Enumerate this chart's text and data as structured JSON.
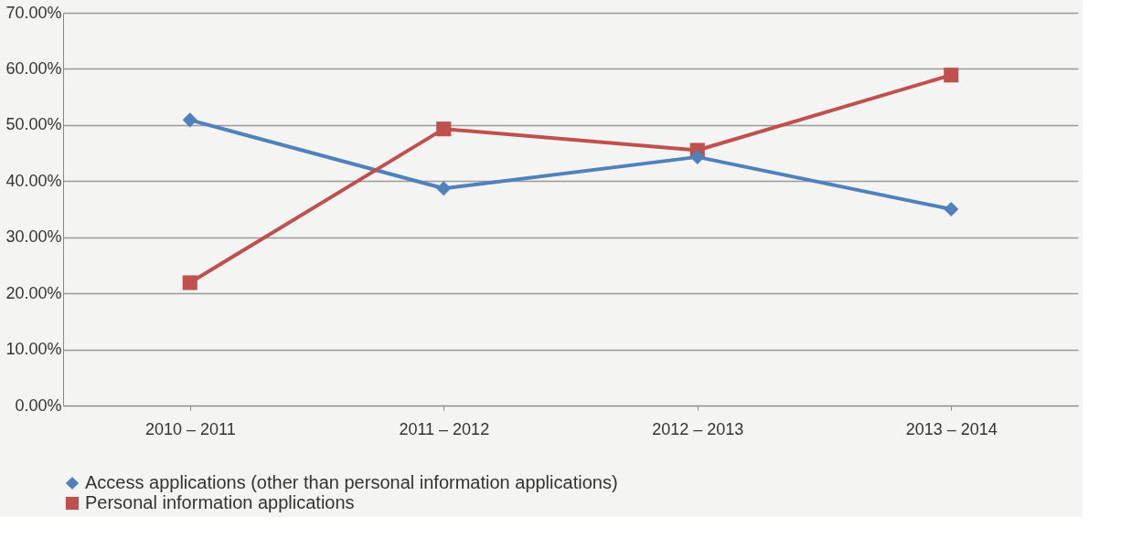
{
  "chart_data": {
    "type": "line",
    "categories": [
      "2010 – 2011",
      "2011 – 2012",
      "2012 – 2013",
      "2013 – 2014"
    ],
    "series": [
      {
        "name": "Access applications (other than personal information applications)",
        "color": "#4f81bd",
        "marker": "diamond",
        "values": [
          50.9,
          38.7,
          44.3,
          35.0
        ]
      },
      {
        "name": "Personal information applications",
        "color": "#c0504d",
        "marker": "square",
        "values": [
          21.9,
          49.3,
          45.5,
          58.9
        ]
      }
    ],
    "ylim": [
      0,
      70
    ],
    "yticks": [
      {
        "value": 0,
        "label": "0.00%"
      },
      {
        "value": 10,
        "label": "10.00%"
      },
      {
        "value": 20,
        "label": "20.00%"
      },
      {
        "value": 30,
        "label": "30.00%"
      },
      {
        "value": 40,
        "label": "40.00%"
      },
      {
        "value": 50,
        "label": "50.00%"
      },
      {
        "value": 60,
        "label": "60.00%"
      },
      {
        "value": 70,
        "label": "70.00%"
      }
    ],
    "grid": "y",
    "legend": "bottom",
    "line_style": "solid"
  }
}
